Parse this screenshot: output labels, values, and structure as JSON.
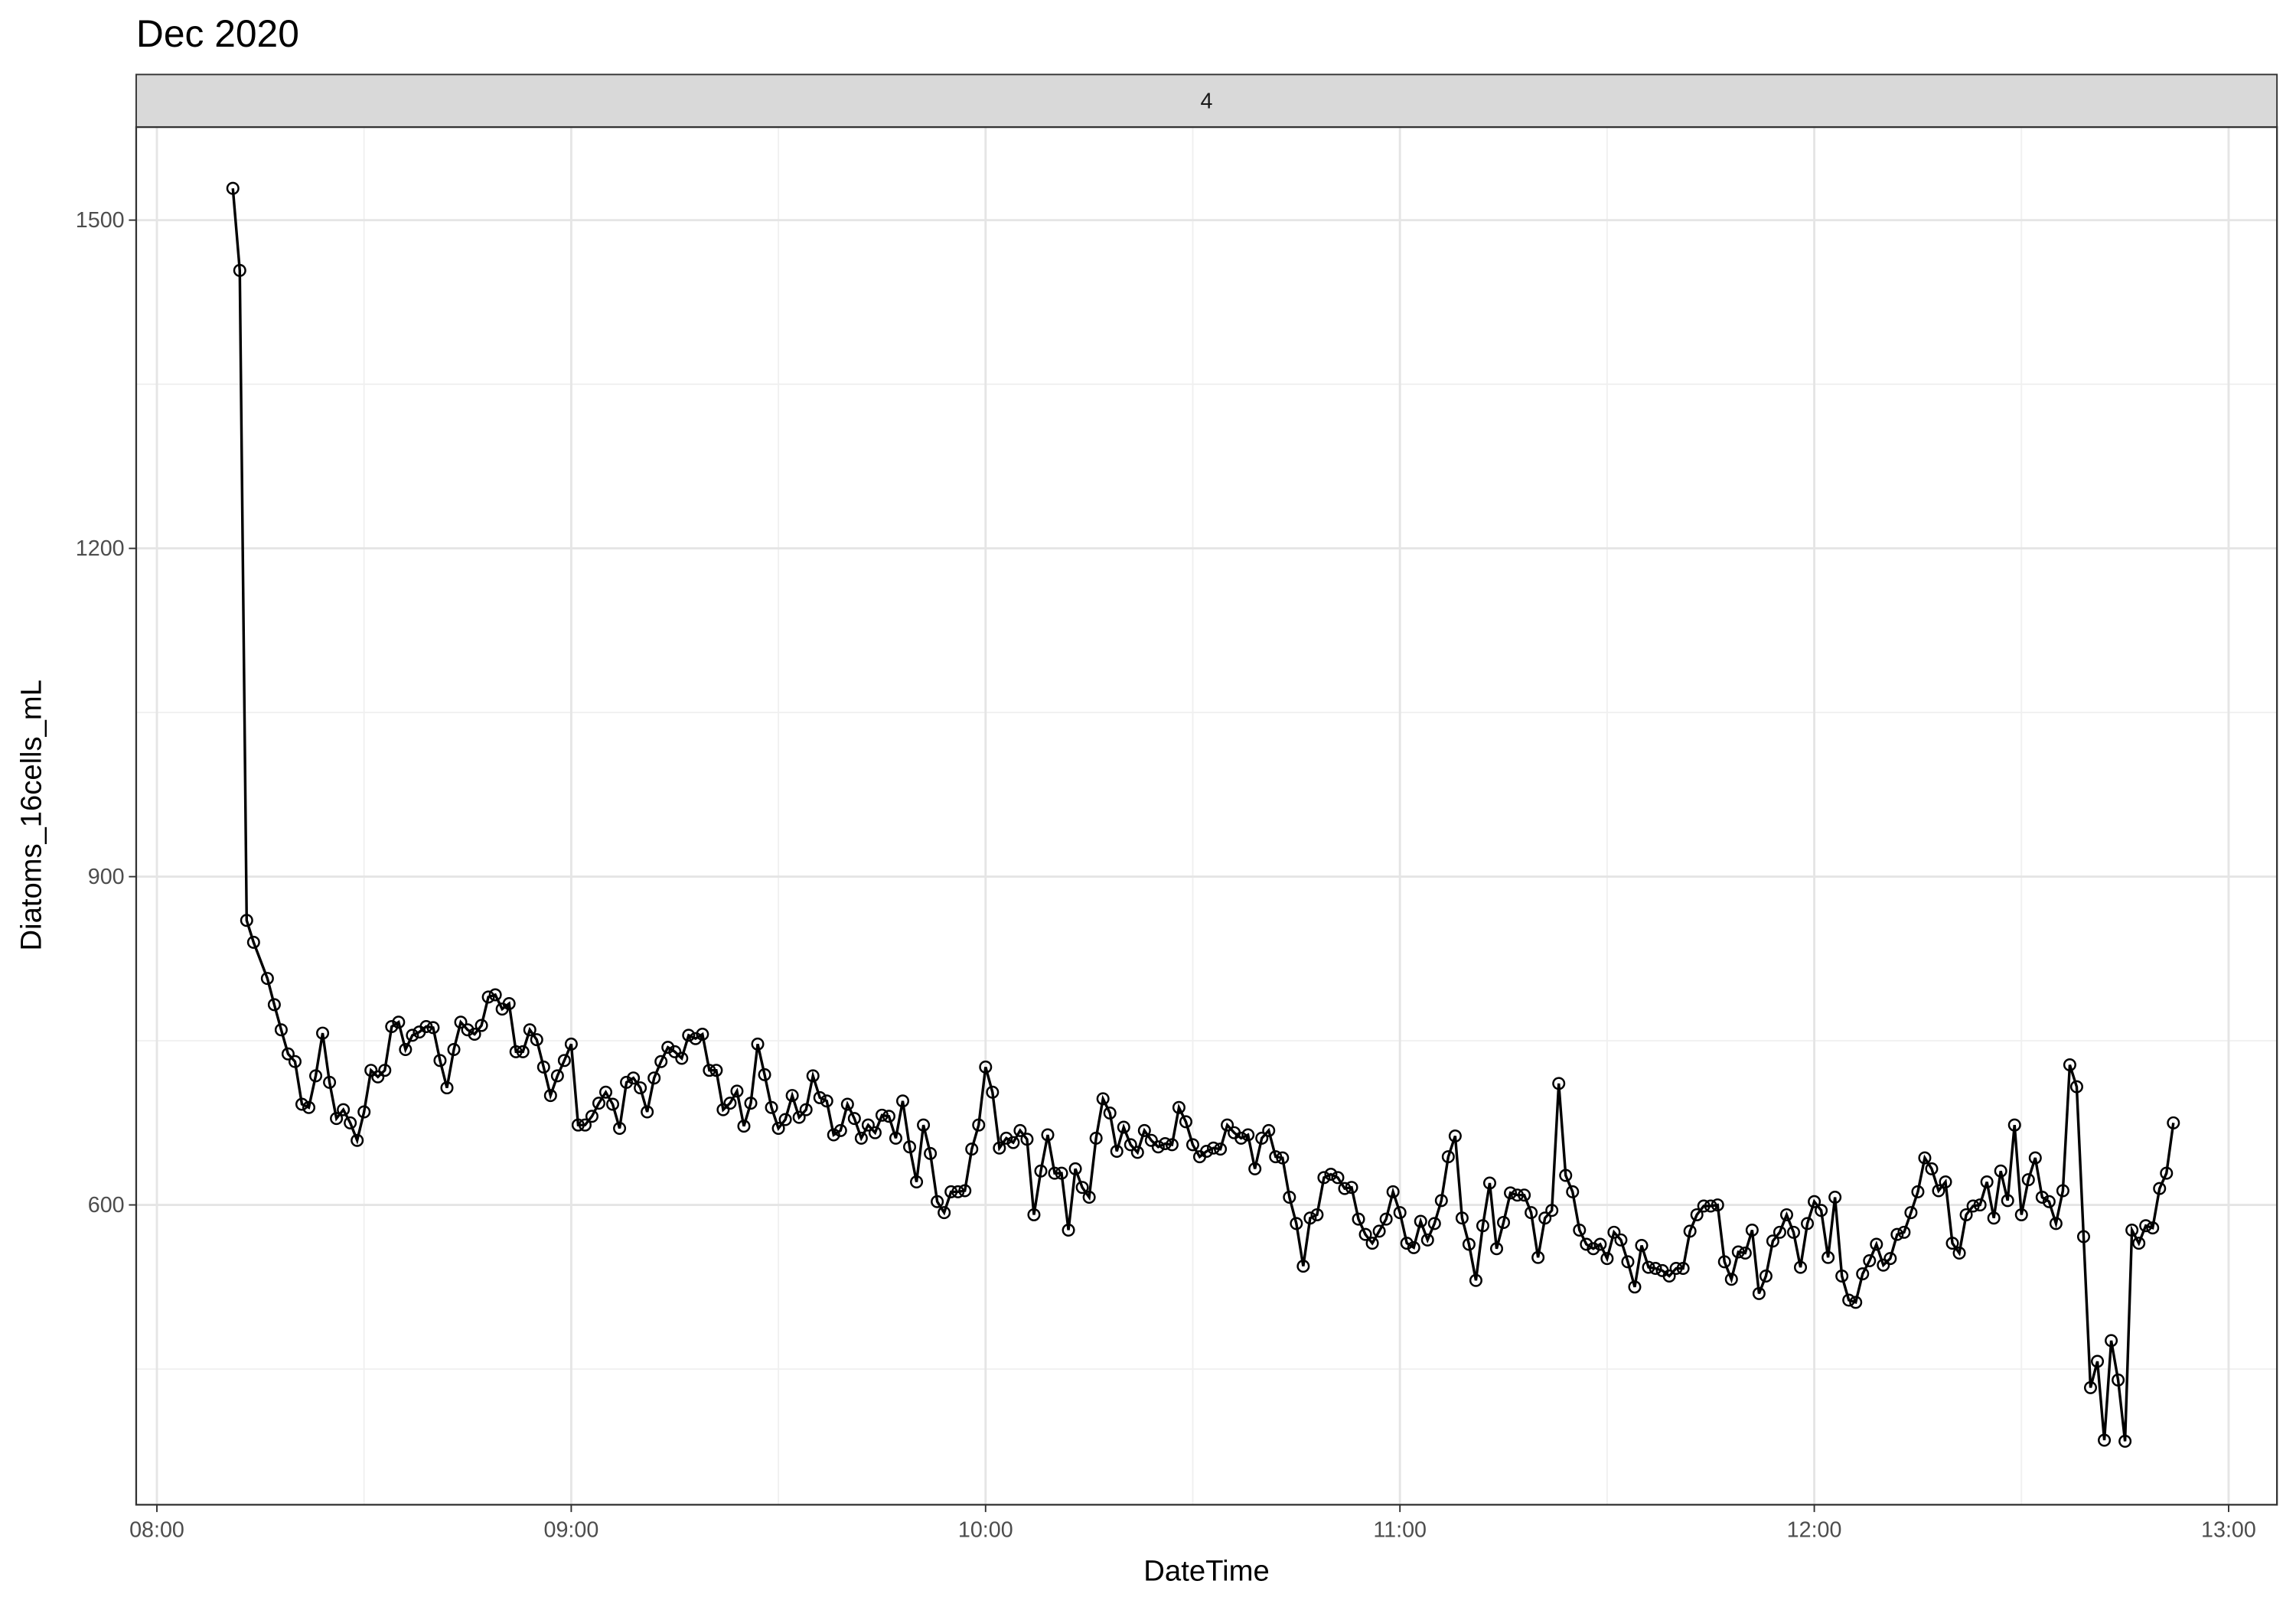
{
  "chart_data": {
    "type": "line",
    "title": "Dec 2020",
    "facet_label": "4",
    "x_label": "DateTime",
    "y_label": "Diatoms_16cells_mL",
    "xlim": [
      "07:57",
      "13:07"
    ],
    "ylim": [
      326,
      1585
    ],
    "xticks": [
      "08:00",
      "09:00",
      "10:00",
      "11:00",
      "12:00",
      "13:00"
    ],
    "minor_xticks": [
      "08:30",
      "09:30",
      "10:30",
      "11:30",
      "12:30"
    ],
    "yticks": [
      600,
      900,
      1200,
      1500
    ],
    "minor_yticks": [
      450,
      750,
      1050,
      1350
    ],
    "grid": true,
    "x": [
      "08:11",
      "08:12",
      "08:13",
      "08:14",
      "08:16",
      "08:17",
      "08:18",
      "08:19",
      "08:20",
      "08:21",
      "08:22",
      "08:23",
      "08:24",
      "08:25",
      "08:26",
      "08:27",
      "08:28",
      "08:29",
      "08:30",
      "08:31",
      "08:32",
      "08:33",
      "08:34",
      "08:35",
      "08:36",
      "08:37",
      "08:38",
      "08:39",
      "08:40",
      "08:41",
      "08:42",
      "08:43",
      "08:44",
      "08:45",
      "08:46",
      "08:47",
      "08:48",
      "08:49",
      "08:50",
      "08:51",
      "08:52",
      "08:53",
      "08:54",
      "08:55",
      "08:56",
      "08:57",
      "08:58",
      "08:59",
      "09:00",
      "09:01",
      "09:02",
      "09:03",
      "09:04",
      "09:05",
      "09:06",
      "09:07",
      "09:08",
      "09:09",
      "09:10",
      "09:11",
      "09:12",
      "09:13",
      "09:14",
      "09:15",
      "09:16",
      "09:17",
      "09:18",
      "09:19",
      "09:20",
      "09:21",
      "09:22",
      "09:23",
      "09:24",
      "09:25",
      "09:26",
      "09:27",
      "09:28",
      "09:29",
      "09:30",
      "09:31",
      "09:32",
      "09:33",
      "09:34",
      "09:35",
      "09:36",
      "09:37",
      "09:38",
      "09:39",
      "09:40",
      "09:41",
      "09:42",
      "09:43",
      "09:44",
      "09:45",
      "09:46",
      "09:47",
      "09:48",
      "09:49",
      "09:50",
      "09:51",
      "09:52",
      "09:53",
      "09:54",
      "09:55",
      "09:56",
      "09:57",
      "09:58",
      "09:59",
      "10:00",
      "10:01",
      "10:02",
      "10:03",
      "10:04",
      "10:05",
      "10:06",
      "10:07",
      "10:08",
      "10:09",
      "10:10",
      "10:11",
      "10:12",
      "10:13",
      "10:14",
      "10:15",
      "10:16",
      "10:17",
      "10:18",
      "10:19",
      "10:20",
      "10:21",
      "10:22",
      "10:23",
      "10:24",
      "10:25",
      "10:26",
      "10:27",
      "10:28",
      "10:29",
      "10:30",
      "10:31",
      "10:32",
      "10:33",
      "10:34",
      "10:35",
      "10:36",
      "10:37",
      "10:38",
      "10:39",
      "10:40",
      "10:41",
      "10:42",
      "10:43",
      "10:44",
      "10:45",
      "10:46",
      "10:47",
      "10:48",
      "10:49",
      "10:50",
      "10:51",
      "10:52",
      "10:53",
      "10:54",
      "10:55",
      "10:56",
      "10:57",
      "10:58",
      "10:59",
      "11:00",
      "11:01",
      "11:02",
      "11:03",
      "11:04",
      "11:05",
      "11:06",
      "11:07",
      "11:08",
      "11:09",
      "11:10",
      "11:11",
      "11:12",
      "11:13",
      "11:14",
      "11:15",
      "11:16",
      "11:17",
      "11:18",
      "11:19",
      "11:20",
      "11:21",
      "11:22",
      "11:23",
      "11:24",
      "11:25",
      "11:26",
      "11:27",
      "11:28",
      "11:29",
      "11:30",
      "11:31",
      "11:32",
      "11:33",
      "11:34",
      "11:35",
      "11:36",
      "11:37",
      "11:38",
      "11:39",
      "11:40",
      "11:41",
      "11:42",
      "11:43",
      "11:44",
      "11:45",
      "11:46",
      "11:47",
      "11:48",
      "11:49",
      "11:50",
      "11:51",
      "11:52",
      "11:53",
      "11:54",
      "11:55",
      "11:56",
      "11:57",
      "11:58",
      "11:59",
      "12:00",
      "12:01",
      "12:02",
      "12:03",
      "12:04",
      "12:05",
      "12:06",
      "12:07",
      "12:08",
      "12:09",
      "12:10",
      "12:11",
      "12:12",
      "12:13",
      "12:14",
      "12:15",
      "12:16",
      "12:17",
      "12:18",
      "12:19",
      "12:20",
      "12:21",
      "12:22",
      "12:23",
      "12:24",
      "12:25",
      "12:26",
      "12:27",
      "12:28",
      "12:29",
      "12:30",
      "12:31",
      "12:32",
      "12:33",
      "12:34",
      "12:35",
      "12:36",
      "12:37",
      "12:38",
      "12:39",
      "12:40",
      "12:41",
      "12:42",
      "12:43",
      "12:44",
      "12:45",
      "12:46",
      "12:47",
      "12:48",
      "12:49",
      "12:50",
      "12:51",
      "12:52"
    ],
    "series": [
      {
        "name": "Diatoms_16cells_mL",
        "color": "#000000",
        "values": [
          1529,
          1454,
          860,
          840,
          807,
          783,
          760,
          738,
          731,
          692,
          689,
          718,
          757,
          712,
          679,
          687,
          675,
          659,
          685,
          723,
          717,
          723,
          763,
          767,
          742,
          755,
          758,
          763,
          762,
          732,
          707,
          742,
          767,
          760,
          756,
          764,
          790,
          792,
          779,
          784,
          740,
          740,
          760,
          751,
          726,
          700,
          718,
          732,
          747,
          673,
          673,
          681,
          693,
          703,
          692,
          670,
          712,
          716,
          707,
          685,
          716,
          731,
          744,
          740,
          734,
          755,
          752,
          756,
          723,
          723,
          687,
          693,
          704,
          672,
          693,
          747,
          719,
          689,
          670,
          678,
          700,
          680,
          687,
          718,
          698,
          695,
          664,
          668,
          692,
          679,
          661,
          673,
          666,
          682,
          681,
          661,
          695,
          653,
          621,
          673,
          647,
          603,
          593,
          612,
          612,
          613,
          651,
          673,
          726,
          703,
          652,
          661,
          657,
          668,
          660,
          591,
          631,
          664,
          629,
          629,
          577,
          633,
          616,
          607,
          661,
          697,
          684,
          649,
          671,
          655,
          648,
          668,
          659,
          653,
          656,
          655,
          689,
          676,
          655,
          644,
          649,
          652,
          651,
          673,
          666,
          661,
          664,
          633,
          661,
          668,
          644,
          643,
          607,
          583,
          544,
          588,
          591,
          625,
          628,
          625,
          615,
          616,
          587,
          573,
          565,
          576,
          587,
          612,
          593,
          565,
          561,
          585,
          568,
          583,
          604,
          644,
          663,
          588,
          564,
          531,
          581,
          620,
          560,
          584,
          611,
          609,
          609,
          593,
          552,
          588,
          595,
          711,
          627,
          612,
          577,
          564,
          560,
          564,
          551,
          575,
          568,
          548,
          525,
          563,
          543,
          542,
          540,
          535,
          542,
          542,
          576,
          591,
          599,
          599,
          600,
          548,
          532,
          557,
          556,
          577,
          519,
          535,
          567,
          575,
          591,
          575,
          543,
          583,
          603,
          595,
          552,
          607,
          535,
          513,
          511,
          537,
          549,
          564,
          545,
          551,
          573,
          575,
          593,
          612,
          643,
          633,
          613,
          621,
          565,
          556,
          591,
          599,
          600,
          621,
          588,
          631,
          604,
          673,
          591,
          623,
          643,
          607,
          603,
          583,
          613,
          728,
          708,
          571,
          433,
          457,
          385,
          476,
          440,
          384,
          577,
          565,
          581,
          579,
          615,
          629,
          675
        ]
      }
    ]
  }
}
